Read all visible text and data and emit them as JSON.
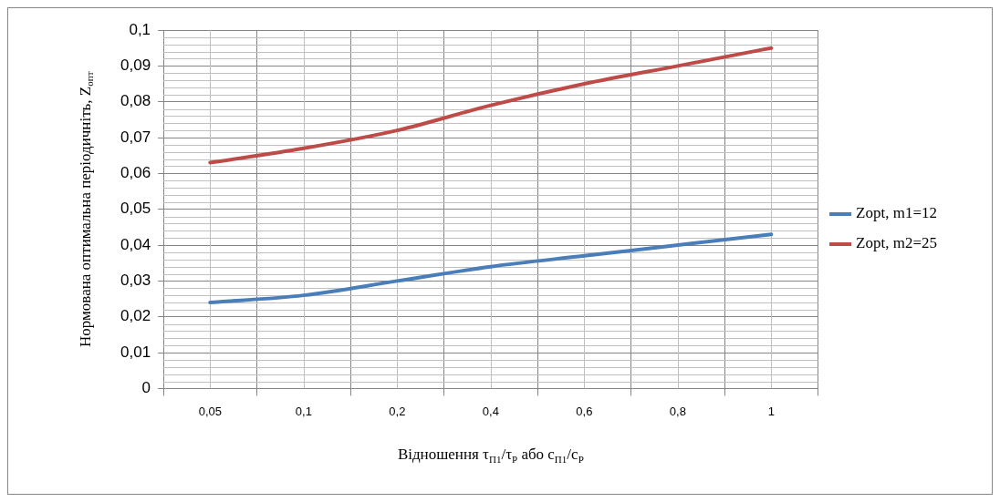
{
  "chart_data": {
    "type": "line",
    "xlabel": "Відношення τ$_{П1}$/τ$_{Р}$ або с$_{П1}$/с$_{Р}$",
    "ylabel": "Нормована оптимальна періодичніть, Z$_{опт}$",
    "categories": [
      "0,05",
      "0,1",
      "0,2",
      "0,4",
      "0,6",
      "0,8",
      "1"
    ],
    "series": [
      {
        "name": "Zopt, m1=12",
        "color": "#4a7ebb",
        "values": [
          0.024,
          0.026,
          0.03,
          0.034,
          0.037,
          0.04,
          0.043
        ]
      },
      {
        "name": "Zopt, m2=25",
        "color": "#be4b48",
        "values": [
          0.063,
          0.067,
          0.072,
          0.079,
          0.085,
          0.09,
          0.095
        ]
      }
    ],
    "ylim": [
      0,
      0.1
    ],
    "yticks": [
      0,
      {
        "value": 0.01,
        "label": "0,01"
      },
      {
        "value": 0.02,
        "label": "0,02"
      },
      {
        "value": 0.03,
        "label": "0,03"
      },
      {
        "value": 0.04,
        "label": "0,04"
      },
      {
        "value": 0.05,
        "label": "0,05"
      },
      {
        "value": 0.06,
        "label": "0,06"
      },
      {
        "value": 0.07,
        "label": "0,07"
      },
      {
        "value": 0.08,
        "label": "0,08"
      },
      {
        "value": 0.09,
        "label": "0,09"
      },
      {
        "value": 0.1,
        "label": "0,1"
      }
    ],
    "grid": true,
    "legend": "right",
    "marker": "none",
    "line_style": "solid"
  }
}
